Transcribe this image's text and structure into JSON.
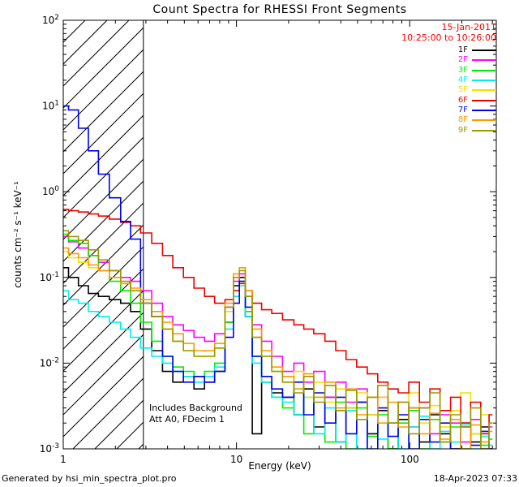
{
  "header": {
    "title": "Count Spectra for RHESSI Front Segments"
  },
  "annotations": {
    "date": "15-Jan-2011",
    "time_range": "10:25:00 to 10:26:00",
    "date_color": "#ff0000",
    "note_line1": "Includes Background",
    "note_line2": "Att A0, FDecim 1"
  },
  "footer": {
    "generated_by": "Generated by hsi_min_spectra_plot.pro",
    "timestamp": "18-Apr-2023 07:33"
  },
  "chart_data": {
    "type": "line",
    "step": true,
    "grid": false,
    "title": "Count Spectra for RHESSI Front Segments",
    "xlabel": "Energy (keV)",
    "ylabel": "counts cm⁻² s⁻¹ keV⁻¹",
    "xscale": "log",
    "yscale": "log",
    "xlim": [
      1,
      316
    ],
    "ylim": [
      0.001,
      100
    ],
    "x_ticks": [
      1,
      10,
      100
    ],
    "y_tick_exponents": [
      -3,
      -2,
      -1,
      0,
      1,
      2
    ],
    "legend_position": "upper right",
    "hatch_region": {
      "xmin": 1,
      "xmax": 2.9
    },
    "x": [
      1.0,
      1.15,
      1.3,
      1.5,
      1.7,
      2.0,
      2.3,
      2.6,
      3.0,
      3.5,
      4.0,
      4.6,
      5.3,
      6.1,
      7.0,
      8.0,
      9.2,
      10.0,
      10.8,
      11.7,
      13,
      15,
      17,
      20,
      23,
      26,
      30,
      35,
      40,
      46,
      53,
      61,
      70,
      80,
      92,
      106,
      122,
      140,
      160,
      185,
      210,
      240,
      275,
      300
    ],
    "series": [
      {
        "name": "1F",
        "color": "#000000",
        "values": [
          0.13,
          0.1,
          0.08,
          0.065,
          0.06,
          0.055,
          0.05,
          0.04,
          0.025,
          0.014,
          0.008,
          0.006,
          0.007,
          0.005,
          0.006,
          0.008,
          0.03,
          0.08,
          0.1,
          0.035,
          0.0015,
          0.006,
          0.0045,
          0.004,
          0.0025,
          0.005,
          0.0018,
          0.004,
          0.0012,
          0.003,
          0.0035,
          0.0015,
          0.0028,
          0.001,
          0.0022,
          0.003,
          0.0012,
          0.0025,
          0.0015,
          0.001,
          0.002,
          0.0012,
          0.0018,
          0.001
        ]
      },
      {
        "name": "2F",
        "color": "#ff00ff",
        "values": [
          0.3,
          0.26,
          0.22,
          0.18,
          0.15,
          0.12,
          0.1,
          0.09,
          0.07,
          0.05,
          0.035,
          0.028,
          0.024,
          0.02,
          0.018,
          0.022,
          0.045,
          0.09,
          0.11,
          0.06,
          0.028,
          0.018,
          0.012,
          0.008,
          0.01,
          0.006,
          0.008,
          0.004,
          0.006,
          0.0035,
          0.005,
          0.0025,
          0.004,
          0.002,
          0.0035,
          0.0018,
          0.003,
          0.0015,
          0.0025,
          0.002,
          0.0012,
          0.0022,
          0.001,
          0.0018
        ]
      },
      {
        "name": "3F",
        "color": "#00ee00",
        "values": [
          0.32,
          0.27,
          0.25,
          0.18,
          0.12,
          0.09,
          0.07,
          0.05,
          0.03,
          0.018,
          0.012,
          0.009,
          0.008,
          0.007,
          0.008,
          0.01,
          0.03,
          0.07,
          0.09,
          0.04,
          0.012,
          0.006,
          0.004,
          0.003,
          0.005,
          0.0015,
          0.004,
          0.0012,
          0.0035,
          0.001,
          0.003,
          0.0014,
          0.0025,
          0.001,
          0.002,
          0.0028,
          0.001,
          0.0022,
          0.0012,
          0.0018,
          0.001,
          0.0015,
          0.0011,
          0.0013
        ]
      },
      {
        "name": "4F",
        "color": "#00eeee",
        "values": [
          0.07,
          0.055,
          0.05,
          0.04,
          0.035,
          0.03,
          0.025,
          0.02,
          0.015,
          0.012,
          0.01,
          0.008,
          0.007,
          0.006,
          0.007,
          0.009,
          0.025,
          0.06,
          0.08,
          0.035,
          0.01,
          0.006,
          0.004,
          0.0035,
          0.0025,
          0.004,
          0.0015,
          0.003,
          0.0012,
          0.0028,
          0.001,
          0.0025,
          0.0013,
          0.002,
          0.001,
          0.0018,
          0.0024,
          0.001,
          0.0016,
          0.0012,
          0.0019,
          0.001,
          0.0014,
          0.0011
        ]
      },
      {
        "name": "5F",
        "color": "#f2e000",
        "values": [
          0.2,
          0.17,
          0.15,
          0.13,
          0.12,
          0.1,
          0.085,
          0.07,
          0.05,
          0.035,
          0.025,
          0.018,
          0.014,
          0.012,
          0.012,
          0.015,
          0.04,
          0.1,
          0.13,
          0.06,
          0.02,
          0.012,
          0.008,
          0.006,
          0.008,
          0.004,
          0.006,
          0.0035,
          0.005,
          0.003,
          0.0045,
          0.0025,
          0.004,
          0.002,
          0.0035,
          0.0045,
          0.002,
          0.0032,
          0.0018,
          0.0028,
          0.0045,
          0.0015,
          0.0025,
          0.002
        ]
      },
      {
        "name": "6F",
        "color": "#ee0000",
        "values": [
          0.62,
          0.6,
          0.58,
          0.55,
          0.52,
          0.48,
          0.44,
          0.4,
          0.33,
          0.25,
          0.18,
          0.13,
          0.1,
          0.075,
          0.06,
          0.05,
          0.055,
          0.07,
          0.085,
          0.07,
          0.05,
          0.042,
          0.038,
          0.032,
          0.028,
          0.025,
          0.022,
          0.018,
          0.014,
          0.011,
          0.009,
          0.0075,
          0.006,
          0.005,
          0.0045,
          0.006,
          0.0035,
          0.005,
          0.0028,
          0.004,
          0.002,
          0.0035,
          0.0015,
          0.0025
        ]
      },
      {
        "name": "7F",
        "color": "#0000ee",
        "values": [
          10.0,
          9.0,
          5.5,
          3.0,
          1.6,
          0.85,
          0.45,
          0.28,
          0.05,
          0.035,
          0.012,
          0.008,
          0.006,
          0.007,
          0.006,
          0.008,
          0.02,
          0.05,
          0.09,
          0.045,
          0.012,
          0.007,
          0.005,
          0.004,
          0.006,
          0.0025,
          0.0045,
          0.002,
          0.004,
          0.0015,
          0.0035,
          0.001,
          0.003,
          0.0014,
          0.0025,
          0.001,
          0.0022,
          0.0012,
          0.002,
          0.001,
          0.0018,
          0.0011,
          0.0016,
          0.001
        ]
      },
      {
        "name": "8F",
        "color": "#ff9900",
        "values": [
          0.22,
          0.19,
          0.17,
          0.14,
          0.12,
          0.1,
          0.085,
          0.075,
          0.055,
          0.04,
          0.03,
          0.022,
          0.017,
          0.014,
          0.014,
          0.017,
          0.05,
          0.11,
          0.13,
          0.07,
          0.025,
          0.014,
          0.009,
          0.007,
          0.005,
          0.0075,
          0.004,
          0.006,
          0.003,
          0.005,
          0.0025,
          0.004,
          0.002,
          0.0035,
          0.0018,
          0.003,
          0.0015,
          0.0026,
          0.0013,
          0.0022,
          0.001,
          0.0019,
          0.0012,
          0.0016
        ]
      },
      {
        "name": "9F",
        "color": "#9a9a00",
        "values": [
          0.35,
          0.3,
          0.27,
          0.21,
          0.16,
          0.12,
          0.09,
          0.07,
          0.05,
          0.035,
          0.025,
          0.018,
          0.014,
          0.012,
          0.012,
          0.015,
          0.045,
          0.1,
          0.12,
          0.06,
          0.02,
          0.012,
          0.008,
          0.006,
          0.0045,
          0.007,
          0.0035,
          0.0055,
          0.0028,
          0.0048,
          0.0022,
          0.004,
          0.0055,
          0.002,
          0.0035,
          0.0015,
          0.003,
          0.0045,
          0.0012,
          0.0025,
          0.0018,
          0.003,
          0.001,
          0.002
        ]
      }
    ]
  }
}
